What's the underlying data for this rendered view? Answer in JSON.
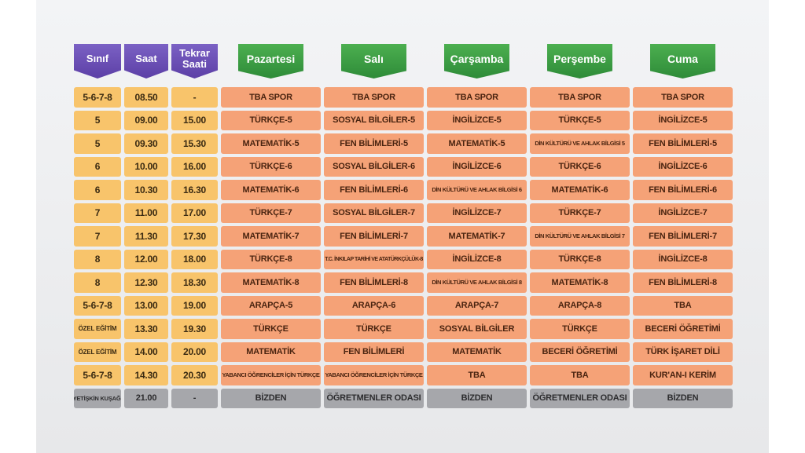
{
  "headers": {
    "sinif": "Sınıf",
    "saat": "Saat",
    "tekrar_line1": "Tekrar",
    "tekrar_line2": "Saati",
    "days": [
      "Pazartesi",
      "Salı",
      "Çarşamba",
      "Perşembe",
      "Cuma"
    ]
  },
  "rows": [
    {
      "sinif": "5-6-7-8",
      "saat": "08.50",
      "tekrar": "-",
      "lessons": [
        "TBA SPOR",
        "TBA SPOR",
        "TBA SPOR",
        "TBA SPOR",
        "TBA SPOR"
      ]
    },
    {
      "sinif": "5",
      "saat": "09.00",
      "tekrar": "15.00",
      "lessons": [
        "TÜRKÇE-5",
        "SOSYAL BİLGİLER-5",
        "İNGİLİZCE-5",
        "TÜRKÇE-5",
        "İNGİLİZCE-5"
      ]
    },
    {
      "sinif": "5",
      "saat": "09.30",
      "tekrar": "15.30",
      "lessons": [
        "MATEMATİK-5",
        "FEN BİLİMLERİ-5",
        "MATEMATİK-5",
        "DİN KÜLTÜRÜ VE AHLAK BİLGİSİ 5",
        "FEN BİLİMLERİ-5"
      ]
    },
    {
      "sinif": "6",
      "saat": "10.00",
      "tekrar": "16.00",
      "lessons": [
        "TÜRKÇE-6",
        "SOSYAL BİLGİLER-6",
        "İNGİLİZCE-6",
        "TÜRKÇE-6",
        "İNGİLİZCE-6"
      ]
    },
    {
      "sinif": "6",
      "saat": "10.30",
      "tekrar": "16.30",
      "lessons": [
        "MATEMATİK-6",
        "FEN BİLİMLERİ-6",
        "DİN KÜLTÜRÜ VE AHLAK BİLGİSİ 6",
        "MATEMATİK-6",
        "FEN BİLİMLERİ-6"
      ]
    },
    {
      "sinif": "7",
      "saat": "11.00",
      "tekrar": "17.00",
      "lessons": [
        "TÜRKÇE-7",
        "SOSYAL BİLGİLER-7",
        "İNGİLİZCE-7",
        "TÜRKÇE-7",
        "İNGİLİZCE-7"
      ]
    },
    {
      "sinif": "7",
      "saat": "11.30",
      "tekrar": "17.30",
      "lessons": [
        "MATEMATİK-7",
        "FEN BİLİMLERİ-7",
        "MATEMATİK-7",
        "DİN KÜLTÜRÜ VE AHLAK BİLGİSİ 7",
        "FEN BİLİMLERİ-7"
      ]
    },
    {
      "sinif": "8",
      "saat": "12.00",
      "tekrar": "18.00",
      "lessons": [
        "TÜRKÇE-8",
        "T.C. İNKILAP TARİHİ VE ATATÜRKÇÜLÜK-8",
        "İNGİLİZCE-8",
        "TÜRKÇE-8",
        "İNGİLİZCE-8"
      ]
    },
    {
      "sinif": "8",
      "saat": "12.30",
      "tekrar": "18.30",
      "lessons": [
        "MATEMATİK-8",
        "FEN BİLİMLERİ-8",
        "DİN KÜLTÜRÜ VE AHLAK BİLGİSİ 8",
        "MATEMATİK-8",
        "FEN BİLİMLERİ-8"
      ]
    },
    {
      "sinif": "5-6-7-8",
      "saat": "13.00",
      "tekrar": "19.00",
      "lessons": [
        "ARAPÇA-5",
        "ARAPÇA-6",
        "ARAPÇA-7",
        "ARAPÇA-8",
        "TBA"
      ]
    },
    {
      "sinif": "ÖZEL EĞİTİM",
      "saat": "13.30",
      "tekrar": "19.30",
      "lessons": [
        "TÜRKÇE",
        "TÜRKÇE",
        "SOSYAL BİLGİLER",
        "TÜRKÇE",
        "BECERİ ÖĞRETİMİ"
      ]
    },
    {
      "sinif": "ÖZEL EĞİTİM",
      "saat": "14.00",
      "tekrar": "20.00",
      "lessons": [
        "MATEMATİK",
        "FEN BİLİMLERİ",
        "MATEMATİK",
        "BECERİ ÖĞRETİMİ",
        "TÜRK İŞARET DİLİ"
      ]
    },
    {
      "sinif": "5-6-7-8",
      "saat": "14.30",
      "tekrar": "20.30",
      "lessons": [
        "YABANCI ÖĞRENCİLER İÇİN TÜRKÇE",
        "YABANCI ÖĞRENCİLER İÇİN TÜRKÇE",
        "TBA",
        "TBA",
        "KUR'AN-I KERİM"
      ]
    }
  ],
  "footer": {
    "sinif": "YETİŞKİN KUŞAĞI",
    "saat": "21.00",
    "tekrar": "-",
    "lessons": [
      "BİZDEN",
      "ÖĞRETMENLER ODASI",
      "BİZDEN",
      "ÖĞRETMENLER ODASI",
      "BİZDEN"
    ]
  },
  "colors": {
    "purple_header": "#5c3fa6",
    "green_header": "#2e8b38",
    "time_cell": "#f8c46b",
    "lesson_cell": "#f5a277",
    "footer_cell": "#a6a7ab"
  }
}
